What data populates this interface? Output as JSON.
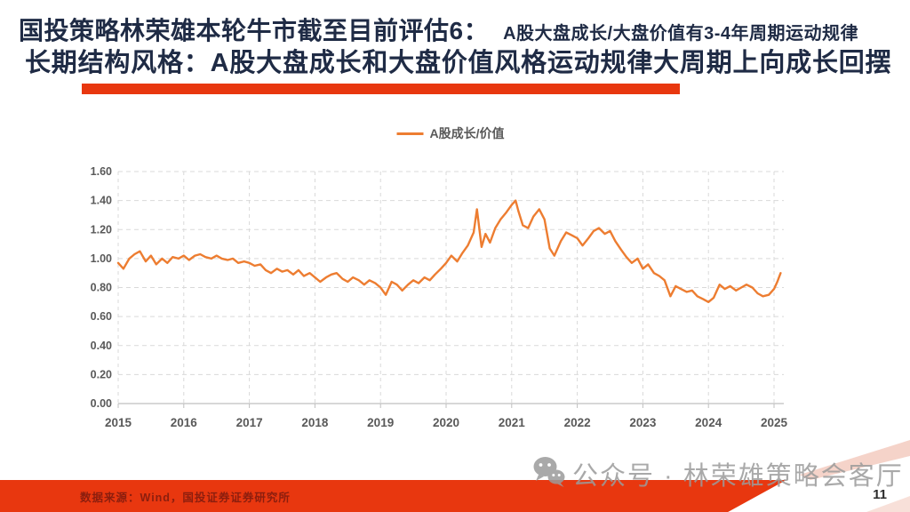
{
  "header": {
    "title_emphasis": "国投策略林荣雄本轮牛市截至目前评估6：",
    "title_detail": "A股大盘成长/大盘价值有3-4年周期运动规律",
    "title_line2": "长期结构风格：A股大盘成长和大盘价值风格运动规律大周期上向成长回摆",
    "title_color": "#1F2B45",
    "accent_color": "#E8370F"
  },
  "chart_data": {
    "type": "line",
    "title": "",
    "legend_entries": [
      "A股成长/价值"
    ],
    "legend_position": "top-center",
    "grid": "dashed",
    "grid_color": "#D9D9D9",
    "axis_color": "#BFBFBF",
    "tick_label_color": "#595959",
    "x_ticks": [
      2015,
      2016,
      2017,
      2018,
      2019,
      2020,
      2021,
      2022,
      2023,
      2024,
      2025
    ],
    "y_tick_labels": [
      "0.00",
      "0.20",
      "0.40",
      "0.60",
      "0.80",
      "1.00",
      "1.20",
      "1.40",
      "1.60"
    ],
    "y_ticks": [
      0.0,
      0.2,
      0.4,
      0.6,
      0.8,
      1.0,
      1.2,
      1.4,
      1.6
    ],
    "ylim": [
      0,
      1.6
    ],
    "xlim": [
      2015,
      2025.15
    ],
    "series": [
      {
        "name": "A股成长/价值",
        "color": "#ED7D31",
        "points": [
          [
            2015.0,
            0.97
          ],
          [
            2015.08,
            0.93
          ],
          [
            2015.17,
            1.0
          ],
          [
            2015.25,
            1.03
          ],
          [
            2015.33,
            1.05
          ],
          [
            2015.42,
            0.98
          ],
          [
            2015.5,
            1.02
          ],
          [
            2015.58,
            0.96
          ],
          [
            2015.67,
            1.0
          ],
          [
            2015.75,
            0.97
          ],
          [
            2015.83,
            1.01
          ],
          [
            2015.92,
            1.0
          ],
          [
            2016.0,
            1.02
          ],
          [
            2016.08,
            0.99
          ],
          [
            2016.17,
            1.02
          ],
          [
            2016.25,
            1.03
          ],
          [
            2016.33,
            1.01
          ],
          [
            2016.42,
            1.0
          ],
          [
            2016.5,
            1.02
          ],
          [
            2016.58,
            1.0
          ],
          [
            2016.67,
            0.99
          ],
          [
            2016.75,
            1.0
          ],
          [
            2016.83,
            0.97
          ],
          [
            2016.92,
            0.98
          ],
          [
            2017.0,
            0.97
          ],
          [
            2017.08,
            0.95
          ],
          [
            2017.17,
            0.96
          ],
          [
            2017.25,
            0.92
          ],
          [
            2017.33,
            0.9
          ],
          [
            2017.42,
            0.93
          ],
          [
            2017.5,
            0.91
          ],
          [
            2017.58,
            0.92
          ],
          [
            2017.67,
            0.89
          ],
          [
            2017.75,
            0.92
          ],
          [
            2017.83,
            0.88
          ],
          [
            2017.92,
            0.9
          ],
          [
            2018.0,
            0.87
          ],
          [
            2018.08,
            0.84
          ],
          [
            2018.17,
            0.87
          ],
          [
            2018.25,
            0.89
          ],
          [
            2018.33,
            0.9
          ],
          [
            2018.42,
            0.86
          ],
          [
            2018.5,
            0.84
          ],
          [
            2018.58,
            0.87
          ],
          [
            2018.67,
            0.85
          ],
          [
            2018.75,
            0.82
          ],
          [
            2018.83,
            0.85
          ],
          [
            2018.92,
            0.83
          ],
          [
            2019.0,
            0.8
          ],
          [
            2019.08,
            0.75
          ],
          [
            2019.17,
            0.84
          ],
          [
            2019.25,
            0.82
          ],
          [
            2019.33,
            0.78
          ],
          [
            2019.42,
            0.82
          ],
          [
            2019.5,
            0.85
          ],
          [
            2019.58,
            0.83
          ],
          [
            2019.67,
            0.87
          ],
          [
            2019.75,
            0.85
          ],
          [
            2019.83,
            0.89
          ],
          [
            2019.92,
            0.93
          ],
          [
            2020.0,
            0.97
          ],
          [
            2020.08,
            1.02
          ],
          [
            2020.17,
            0.98
          ],
          [
            2020.25,
            1.04
          ],
          [
            2020.33,
            1.09
          ],
          [
            2020.42,
            1.18
          ],
          [
            2020.47,
            1.34
          ],
          [
            2020.54,
            1.08
          ],
          [
            2020.6,
            1.17
          ],
          [
            2020.67,
            1.11
          ],
          [
            2020.75,
            1.21
          ],
          [
            2020.83,
            1.27
          ],
          [
            2020.92,
            1.32
          ],
          [
            2021.0,
            1.37
          ],
          [
            2021.06,
            1.4
          ],
          [
            2021.1,
            1.33
          ],
          [
            2021.17,
            1.23
          ],
          [
            2021.25,
            1.21
          ],
          [
            2021.33,
            1.29
          ],
          [
            2021.42,
            1.34
          ],
          [
            2021.5,
            1.27
          ],
          [
            2021.58,
            1.07
          ],
          [
            2021.65,
            1.02
          ],
          [
            2021.75,
            1.12
          ],
          [
            2021.83,
            1.18
          ],
          [
            2021.92,
            1.16
          ],
          [
            2022.0,
            1.14
          ],
          [
            2022.08,
            1.09
          ],
          [
            2022.17,
            1.14
          ],
          [
            2022.25,
            1.19
          ],
          [
            2022.33,
            1.21
          ],
          [
            2022.42,
            1.17
          ],
          [
            2022.5,
            1.19
          ],
          [
            2022.58,
            1.12
          ],
          [
            2022.67,
            1.06
          ],
          [
            2022.75,
            1.01
          ],
          [
            2022.83,
            0.97
          ],
          [
            2022.92,
            1.0
          ],
          [
            2023.0,
            0.93
          ],
          [
            2023.08,
            0.96
          ],
          [
            2023.17,
            0.9
          ],
          [
            2023.25,
            0.88
          ],
          [
            2023.33,
            0.85
          ],
          [
            2023.42,
            0.74
          ],
          [
            2023.5,
            0.81
          ],
          [
            2023.58,
            0.79
          ],
          [
            2023.67,
            0.77
          ],
          [
            2023.75,
            0.78
          ],
          [
            2023.83,
            0.74
          ],
          [
            2023.92,
            0.72
          ],
          [
            2024.0,
            0.7
          ],
          [
            2024.08,
            0.73
          ],
          [
            2024.17,
            0.82
          ],
          [
            2024.25,
            0.79
          ],
          [
            2024.33,
            0.81
          ],
          [
            2024.42,
            0.78
          ],
          [
            2024.5,
            0.8
          ],
          [
            2024.58,
            0.82
          ],
          [
            2024.67,
            0.8
          ],
          [
            2024.75,
            0.76
          ],
          [
            2024.83,
            0.74
          ],
          [
            2024.92,
            0.75
          ],
          [
            2025.0,
            0.79
          ],
          [
            2025.05,
            0.84
          ],
          [
            2025.1,
            0.9
          ]
        ]
      }
    ]
  },
  "footer": {
    "source": "数据来源：Wind，国投证券证券研究所",
    "source_color": "#8B1E0E",
    "bar_color": "#E8370F",
    "stripe_color": "#F5D3C9",
    "watermark": "公众号 · 林荣雄策略会客厅",
    "watermark_color": "#9B9B9B",
    "page_number": "11"
  }
}
